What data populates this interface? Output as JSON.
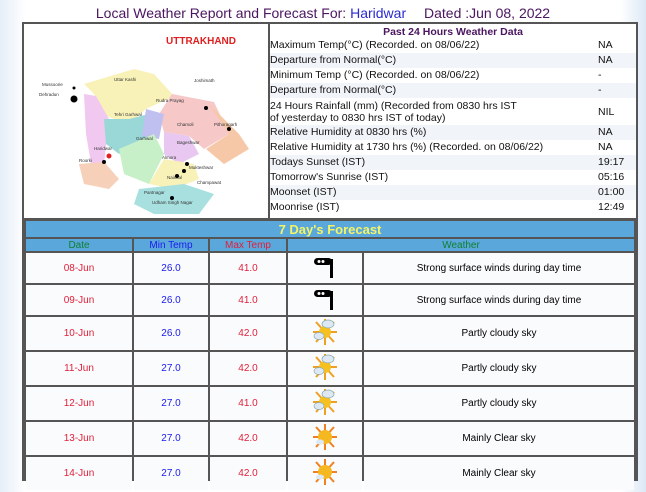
{
  "header": {
    "prefix": "Local Weather Report and Forecast For:",
    "city": "Haridwar",
    "dated": "Dated :Jun 08, 2022"
  },
  "map": {
    "state": "UTTRAKHAND",
    "places": [
      "Mussoorie",
      "Dehradun",
      "Uttar Kashi",
      "Joshimath",
      "Rudra Prayag",
      "Tehri Garhwal",
      "Chamoli",
      "Pithoragarh",
      "Garhwal",
      "Bageshwar",
      "Haridwar",
      "Roorki",
      "Almora",
      "Mukteshwar",
      "Nainital",
      "Champawat",
      "Pantnagar",
      "Udham Singh Nagar"
    ]
  },
  "past24": {
    "title": "Past 24 Hours Weather Data",
    "rows": [
      {
        "label": "Maximum Temp(°C) (Recorded. on 08/06/22)",
        "value": "NA"
      },
      {
        "label": "Departure from Normal(°C)",
        "value": "NA"
      },
      {
        "label": "Minimum Temp (°C) (Recorded. on 08/06/22)",
        "value": "-"
      },
      {
        "label": "Departure from Normal(°C)",
        "value": "-"
      },
      {
        "label": "24 Hours Rainfall (mm) (Recorded from 0830 hrs IST",
        "label2": "of yesterday to 0830 hrs IST of today)",
        "value": "NIL"
      },
      {
        "label": "Relative Humidity at 0830 hrs (%)",
        "value": "NA"
      },
      {
        "label": "Relative Humidity at 1730 hrs (%) (Recorded. on 08/06/22)",
        "value": "NA"
      },
      {
        "label": "Todays Sunset (IST)",
        "value": "19:17"
      },
      {
        "label": "Tomorrow's Sunrise (IST)",
        "value": "05:16"
      },
      {
        "label": "Moonset (IST)",
        "value": "01:00"
      },
      {
        "label": "Moonrise (IST)",
        "value": "12:49"
      }
    ]
  },
  "forecast": {
    "title": "7 Day's Forecast",
    "columns": [
      "Date",
      "Min Temp",
      "Max Temp",
      "Weather"
    ],
    "rows": [
      {
        "date": "08-Jun",
        "min": "26.0",
        "max": "41.0",
        "icon": "wind-icon",
        "weather": "Strong surface winds during day time"
      },
      {
        "date": "09-Jun",
        "min": "26.0",
        "max": "41.0",
        "icon": "wind-icon",
        "weather": "Strong surface winds during day time"
      },
      {
        "date": "10-Jun",
        "min": "26.0",
        "max": "42.0",
        "icon": "partly-cloudy-icon",
        "weather": "Partly cloudy sky"
      },
      {
        "date": "11-Jun",
        "min": "27.0",
        "max": "42.0",
        "icon": "partly-cloudy-icon",
        "weather": "Partly cloudy sky"
      },
      {
        "date": "12-Jun",
        "min": "27.0",
        "max": "41.0",
        "icon": "partly-cloudy-icon",
        "weather": "Partly cloudy sky"
      },
      {
        "date": "13-Jun",
        "min": "27.0",
        "max": "42.0",
        "icon": "sun-icon",
        "weather": "Mainly Clear sky"
      },
      {
        "date": "14-Jun",
        "min": "27.0",
        "max": "42.0",
        "icon": "sun-icon",
        "weather": "Mainly Clear sky"
      }
    ]
  },
  "colors": {
    "header_blue": "#5aa7dc",
    "caption_yellow": "#f4f466",
    "date_red": "#e0203a",
    "min_blue": "#1a1aee",
    "weather_green": "#108030"
  }
}
